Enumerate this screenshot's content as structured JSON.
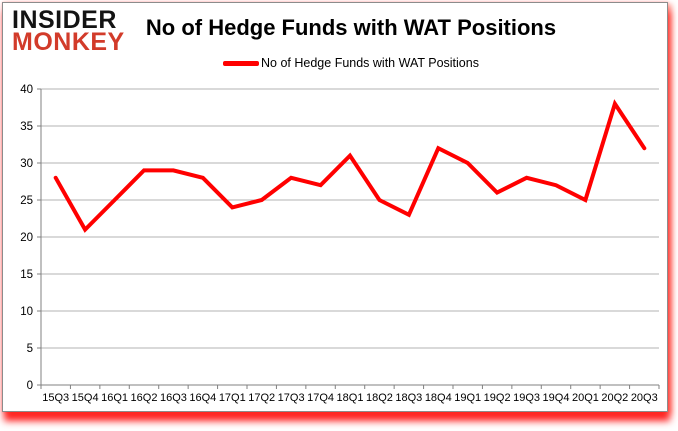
{
  "logo": {
    "line1": "INSIDER",
    "line2": "MONKEY",
    "line1_color": "#131313",
    "line2_color": "#d23b2a"
  },
  "header": {
    "title": "No of Hedge Funds with WAT Positions"
  },
  "legend": {
    "label": "No of Hedge Funds with WAT Positions",
    "line_color": "#ff0000"
  },
  "chart_data": {
    "type": "line",
    "title": "No of Hedge Funds with WAT Positions",
    "categories": [
      "15Q3",
      "15Q4",
      "16Q1",
      "16Q2",
      "16Q3",
      "16Q4",
      "17Q1",
      "17Q2",
      "17Q3",
      "17Q4",
      "18Q1",
      "18Q2",
      "18Q3",
      "18Q4",
      "19Q1",
      "19Q2",
      "19Q3",
      "19Q4",
      "20Q1",
      "20Q2",
      "20Q3"
    ],
    "series": [
      {
        "name": "No of Hedge Funds with WAT Positions",
        "color": "#ff0000",
        "values": [
          28,
          21,
          25,
          29,
          29,
          28,
          24,
          25,
          28,
          27,
          31,
          25,
          23,
          32,
          30,
          26,
          28,
          27,
          25,
          38,
          32
        ]
      }
    ],
    "xlabel": "",
    "ylabel": "",
    "ylim": [
      0,
      40
    ],
    "yticks": [
      0,
      5,
      10,
      15,
      20,
      25,
      30,
      35,
      40
    ],
    "grid": true,
    "legend_position": "top-center"
  },
  "colors": {
    "gridline": "#b3b3b3",
    "axis": "#808080",
    "tick_label": "#000000",
    "background": "#ffffff",
    "card_border": "#8c8c8c",
    "shadow_glow": "#ff0000"
  }
}
